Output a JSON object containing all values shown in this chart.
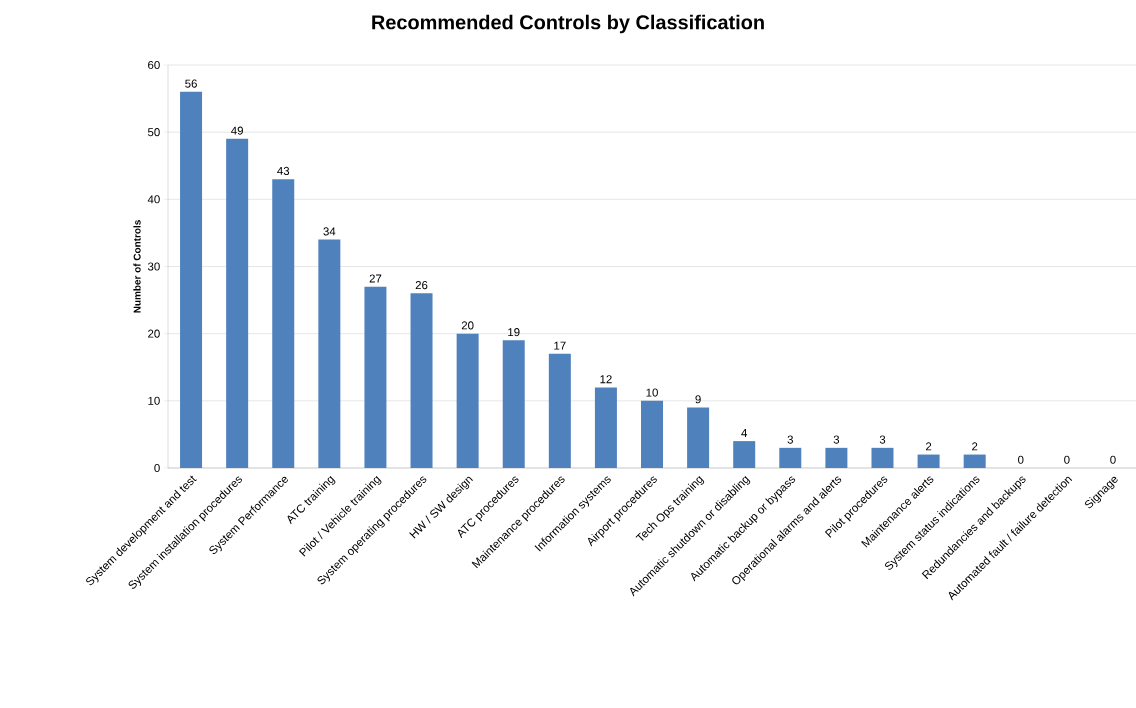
{
  "chart_data": {
    "type": "bar",
    "title": "Recommended Controls by Classification",
    "ylabel": "Number of Controls",
    "categories": [
      "System development and test",
      "System installation procedures",
      "System Performance",
      "ATC training",
      "Pilot / Vehicle training",
      "System operating procedures",
      "HW / SW design",
      "ATC procedures",
      "Maintenance procedures",
      "Information systems",
      "Airport procedures",
      "Tech Ops training",
      "Automatic shutdown or disabling",
      "Automatic backup or bypass",
      "Operational alarms and alerts",
      "Pilot procedures",
      "Maintenance alerts",
      "System status indications",
      "Redundancies and backups",
      "Automated fault / failure detection",
      "Signage"
    ],
    "values": [
      56,
      49,
      43,
      34,
      27,
      26,
      20,
      19,
      17,
      12,
      10,
      9,
      4,
      3,
      3,
      3,
      2,
      2,
      0,
      0,
      0
    ],
    "color": "#4f81bd",
    "ylim": [
      0,
      60
    ],
    "yticks": [
      0,
      10,
      20,
      30,
      40,
      50,
      60
    ],
    "grid": "y",
    "data_labels": true
  }
}
